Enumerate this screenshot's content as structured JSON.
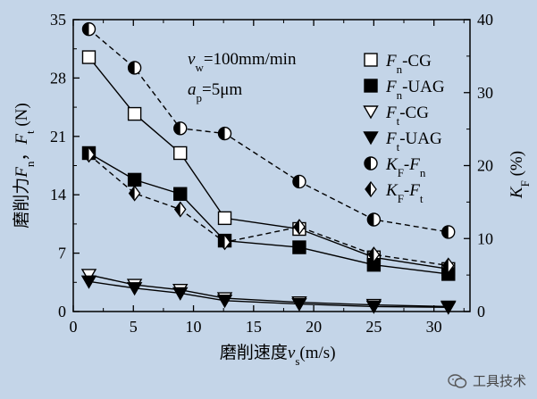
{
  "chart_data": {
    "type": "line",
    "x_axis": {
      "label": "磨削速度",
      "label_var": "v",
      "label_sub": "s",
      "label_unit": "(m/s)",
      "range": [
        0,
        33
      ],
      "ticks": [
        0,
        5,
        10,
        15,
        20,
        25,
        30
      ]
    },
    "y_axis_left": {
      "label_cn": "磨削力",
      "label_var1": "F",
      "label_sub1": "n",
      "label_sep": "，",
      "label_var2": "F",
      "label_sub2": "t",
      "label_unit": "(N)",
      "range": [
        0,
        35
      ],
      "ticks": [
        0,
        7,
        14,
        21,
        28,
        35
      ]
    },
    "y_axis_right": {
      "label_var": "K",
      "label_sub": "F",
      "label_unit": "(%)",
      "range": [
        0,
        40
      ],
      "ticks": [
        0,
        10,
        20,
        30,
        40
      ]
    },
    "conditions": [
      {
        "var": "v",
        "sub": "w",
        "value": "=100mm/min"
      },
      {
        "var": "a",
        "sub": "p",
        "value": "=5μm"
      }
    ],
    "x": [
      1.3,
      5.1,
      8.9,
      12.6,
      18.8,
      25.0,
      31.2
    ],
    "series": [
      {
        "name_var": "F",
        "name_sub": "n",
        "name_rest": "-CG",
        "axis": "left",
        "marker": "square-open",
        "line": "solid",
        "values": [
          30.5,
          23.7,
          19.0,
          11.2,
          9.9,
          6.5,
          5.1
        ]
      },
      {
        "name_var": "F",
        "name_sub": "n",
        "name_rest": "-UAG",
        "axis": "left",
        "marker": "square-filled",
        "line": "solid",
        "values": [
          19.0,
          15.8,
          14.1,
          8.5,
          7.7,
          5.6,
          4.5
        ]
      },
      {
        "name_var": "F",
        "name_sub": "t",
        "name_rest": "-CG",
        "axis": "left",
        "marker": "triangle-down-open",
        "line": "solid",
        "values": [
          4.4,
          3.2,
          2.6,
          1.6,
          1.1,
          0.8,
          0.6
        ]
      },
      {
        "name_var": "F",
        "name_sub": "t",
        "name_rest": "-UAG",
        "axis": "left",
        "marker": "triangle-down-filled",
        "line": "solid",
        "values": [
          3.6,
          2.8,
          2.2,
          1.3,
          0.9,
          0.6,
          0.5
        ]
      },
      {
        "name_var": "K",
        "name_sub": "F",
        "name_rest": "-",
        "name_var2": "F",
        "name_sub2": "n",
        "axis": "right",
        "marker": "circle-half",
        "line": "dashed",
        "values": [
          38.7,
          33.4,
          25.1,
          24.4,
          17.8,
          12.6,
          10.9
        ]
      },
      {
        "name_var": "K",
        "name_sub": "F",
        "name_rest": "-",
        "name_var2": "F",
        "name_sub2": "t",
        "axis": "right",
        "marker": "diamond-half",
        "line": "dashed",
        "values": [
          21.5,
          16.2,
          14.0,
          9.5,
          11.6,
          7.8,
          6.3
        ]
      }
    ],
    "grid": false,
    "legend_position": "top-right"
  },
  "watermark": {
    "text": "工具技术"
  }
}
